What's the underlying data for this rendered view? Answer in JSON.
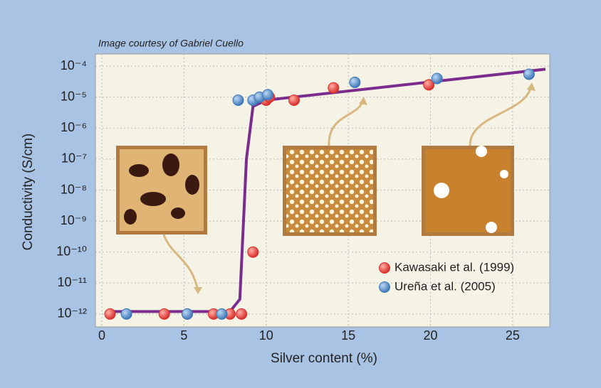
{
  "chart_data": {
    "type": "scatter",
    "credit": "Image courtesy of Gabriel Cuello",
    "x_label": "Silver content (%)",
    "y_label": "Conductivity (S/cm)",
    "xlim": [
      0,
      27
    ],
    "xticks": [
      0,
      5,
      10,
      15,
      20,
      25
    ],
    "ylim": [
      5e-13,
      0.0002
    ],
    "log_y": true,
    "grid": true,
    "legend": "lower right",
    "yticks": [
      {
        "value": 0.0001,
        "label": "10⁻⁴"
      },
      {
        "value": 1e-05,
        "label": "10⁻⁵"
      },
      {
        "value": 1e-06,
        "label": "10⁻⁶"
      },
      {
        "value": 1e-07,
        "label": "10⁻⁷"
      },
      {
        "value": 1e-08,
        "label": "10⁻⁸"
      },
      {
        "value": 1e-09,
        "label": "10⁻⁹"
      },
      {
        "value": 1e-10,
        "label": "10⁻¹⁰"
      },
      {
        "value": 1e-11,
        "label": "10⁻¹¹"
      },
      {
        "value": 1e-12,
        "label": "10⁻¹²"
      }
    ],
    "series": [
      {
        "name": "Kawasaki et al. (1999)",
        "color": "#d9302a",
        "x": [
          0.5,
          3.8,
          5.2,
          6.8,
          7.8,
          8.5,
          9.2,
          10.0,
          10.2,
          11.7,
          14.1,
          19.9
        ],
        "values": [
          1e-12,
          1e-12,
          1e-12,
          1e-12,
          1e-12,
          1e-12,
          1e-10,
          8e-06,
          1e-05,
          8e-06,
          2e-05,
          2.5e-05
        ]
      },
      {
        "name": "Ureña et al. (2005)",
        "color": "#3f78b8",
        "x": [
          1.5,
          5.2,
          7.3,
          8.3,
          9.2,
          9.6,
          10.1,
          15.4,
          20.4,
          26.0
        ],
        "values": [
          1e-12,
          1e-12,
          1e-12,
          8e-06,
          8e-06,
          1e-05,
          1.2e-05,
          3e-05,
          4e-05,
          5.5e-05
        ]
      }
    ],
    "fit": {
      "color": "#7b2d8e",
      "x": [
        0.5,
        7.8,
        8.4,
        8.8,
        9.2,
        10.0,
        27.0
      ],
      "y": [
        1.2e-12,
        1.2e-12,
        3e-12,
        1e-07,
        5e-06,
        8e-06,
        8e-05
      ]
    }
  }
}
